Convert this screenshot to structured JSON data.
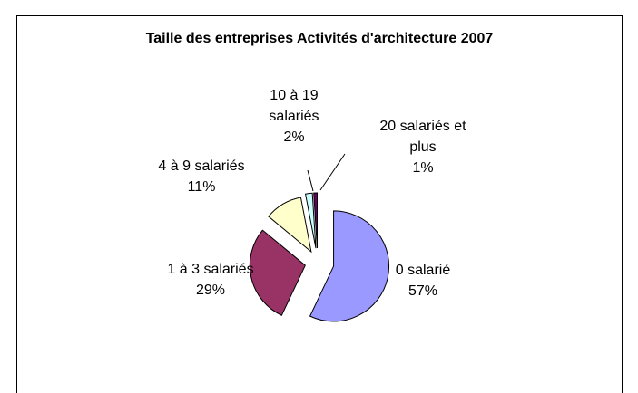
{
  "chart_data": {
    "type": "pie",
    "title": "Taille des entreprises Activités d'architecture 2007",
    "categories": [
      "0 salarié",
      "1 à 3 salariés",
      "4 à 9 salariés",
      "10 à 19 salariés",
      "20 salariés et plus"
    ],
    "values": [
      57,
      29,
      11,
      2,
      1
    ],
    "value_labels": [
      "57%",
      "29%",
      "11%",
      "2%",
      "1%"
    ],
    "colors": [
      "#9999ff",
      "#993366",
      "#ffffcc",
      "#ccffff",
      "#660066"
    ]
  }
}
